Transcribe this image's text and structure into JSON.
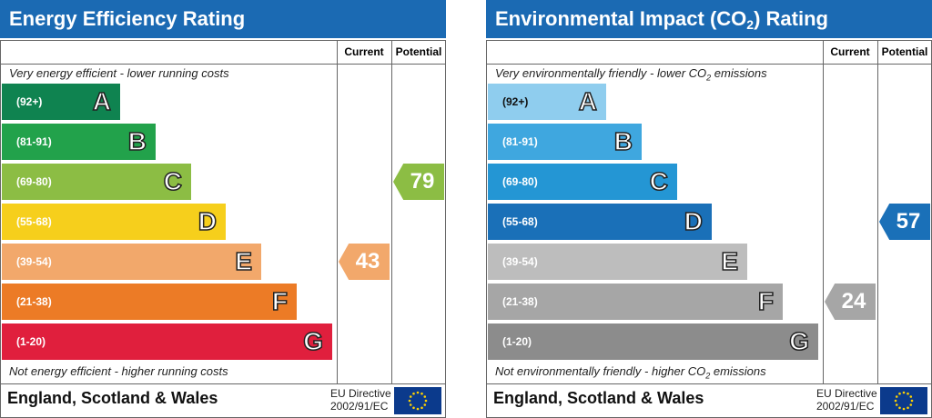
{
  "chart_data": [
    {
      "type": "bar",
      "title": "Energy Efficiency Rating",
      "column_headers": [
        "Current",
        "Potential"
      ],
      "top_note": "Very energy efficient - lower running costs",
      "bottom_note": "Not energy efficient - higher running costs",
      "bands": [
        {
          "range": "(92+)",
          "letter": "A",
          "color": "#0f8350"
        },
        {
          "range": "(81-91)",
          "letter": "B",
          "color": "#22a24b"
        },
        {
          "range": "(69-80)",
          "letter": "C",
          "color": "#8cbd44"
        },
        {
          "range": "(55-68)",
          "letter": "D",
          "color": "#f6cf1c"
        },
        {
          "range": "(39-54)",
          "letter": "E",
          "color": "#f2a86b"
        },
        {
          "range": "(21-38)",
          "letter": "F",
          "color": "#ec7b26"
        },
        {
          "range": "(1-20)",
          "letter": "G",
          "color": "#e01f3d"
        }
      ],
      "current": {
        "value": 43,
        "band": "E",
        "color": "#f2a86b"
      },
      "potential": {
        "value": 79,
        "band": "C",
        "color": "#8cbd44"
      },
      "footer": {
        "country": "England, Scotland & Wales",
        "directive_line1": "EU Directive",
        "directive_line2": "2002/91/EC"
      }
    },
    {
      "type": "bar",
      "title": "Environmental Impact (CO",
      "title_sub": "2",
      "title_end": ") Rating",
      "column_headers": [
        "Current",
        "Potential"
      ],
      "top_note": "Very environmentally friendly - lower CO",
      "top_note_sub": "2",
      "top_note_end": " emissions",
      "bottom_note": "Not environmentally friendly - higher CO",
      "bottom_note_sub": "2",
      "bottom_note_end": " emissions",
      "bands": [
        {
          "range": "(92+)",
          "letter": "A",
          "color": "#8fcdee"
        },
        {
          "range": "(81-91)",
          "letter": "B",
          "color": "#3fa7df"
        },
        {
          "range": "(69-80)",
          "letter": "C",
          "color": "#2496d4"
        },
        {
          "range": "(55-68)",
          "letter": "D",
          "color": "#1a70b8"
        },
        {
          "range": "(39-54)",
          "letter": "E",
          "color": "#bdbdbd"
        },
        {
          "range": "(21-38)",
          "letter": "F",
          "color": "#a6a6a6"
        },
        {
          "range": "(1-20)",
          "letter": "G",
          "color": "#8c8c8c"
        }
      ],
      "current": {
        "value": 24,
        "band": "F",
        "color": "#a6a6a6"
      },
      "potential": {
        "value": 57,
        "band": "D",
        "color": "#1a70b8"
      },
      "footer": {
        "country": "England, Scotland & Wales",
        "directive_line1": "EU Directive",
        "directive_line2": "2002/91/EC"
      }
    }
  ]
}
